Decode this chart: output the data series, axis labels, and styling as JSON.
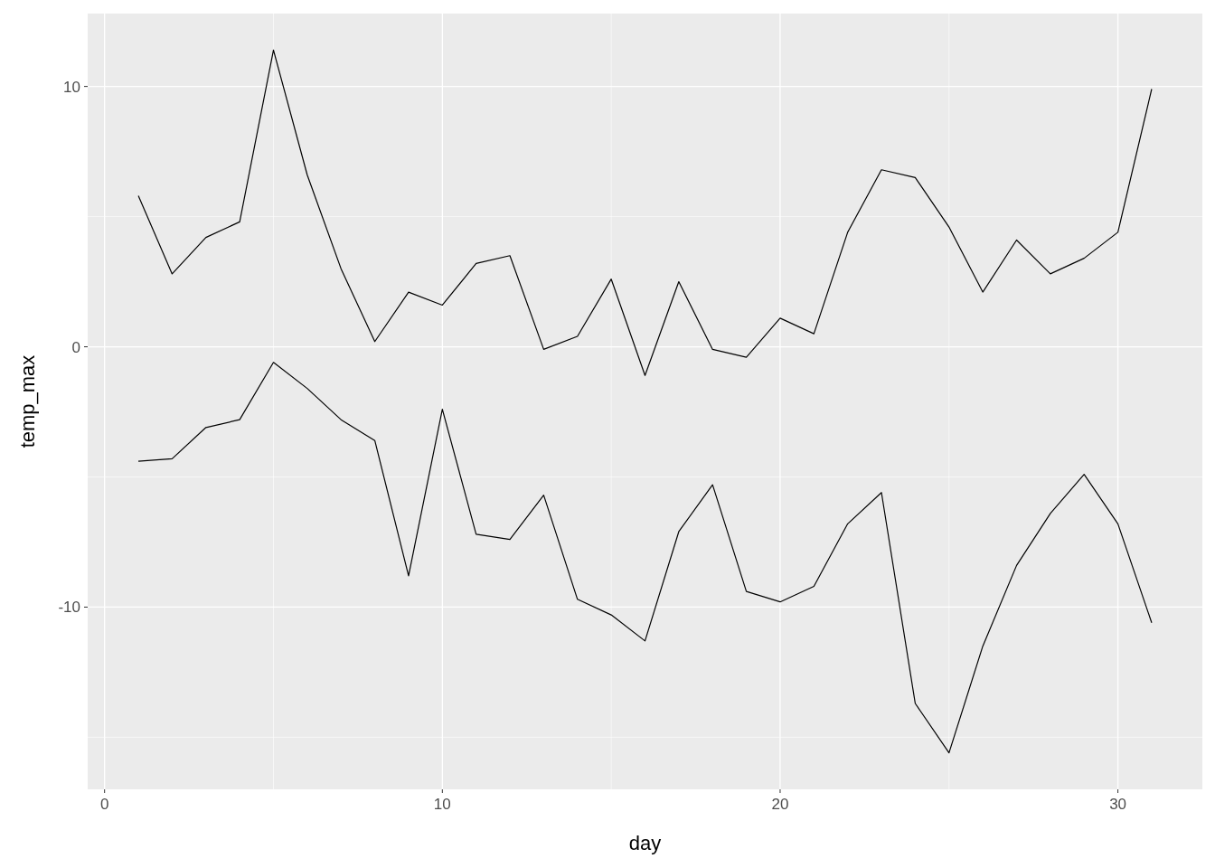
{
  "chart_data": {
    "type": "line",
    "xlabel": "day",
    "ylabel": "temp_max",
    "x": [
      1,
      2,
      3,
      4,
      5,
      6,
      7,
      8,
      9,
      10,
      11,
      12,
      13,
      14,
      15,
      16,
      17,
      18,
      19,
      20,
      21,
      22,
      23,
      24,
      25,
      26,
      27,
      28,
      29,
      30,
      31
    ],
    "series": [
      {
        "color": "#000000",
        "values": [
          5.8,
          2.8,
          4.2,
          4.8,
          11.4,
          6.6,
          3.0,
          0.2,
          2.1,
          1.6,
          3.2,
          3.5,
          -0.1,
          0.4,
          2.6,
          -1.1,
          2.5,
          -0.1,
          -0.4,
          1.1,
          0.5,
          4.4,
          6.8,
          6.5,
          4.6,
          2.1,
          4.1,
          2.8,
          3.4,
          4.4,
          9.9
        ]
      },
      {
        "color": "#000000",
        "values": [
          -4.4,
          -4.3,
          -3.1,
          -2.8,
          -0.6,
          -1.6,
          -2.8,
          -3.6,
          -8.8,
          -2.4,
          -7.2,
          -7.4,
          -5.7,
          -9.7,
          -10.3,
          -11.3,
          -7.1,
          -5.3,
          -9.4,
          -9.8,
          -9.2,
          -6.8,
          -5.6,
          -13.7,
          -15.6,
          -11.5,
          -8.4,
          -6.4,
          -4.9,
          -6.8,
          -10.6
        ]
      }
    ],
    "xlim": [
      -0.5,
      32.5
    ],
    "ylim": [
      -17,
      12.8
    ],
    "xticks": [
      0,
      10,
      20,
      30
    ],
    "yticks": [
      -10,
      0,
      10
    ],
    "grid": true,
    "marker": "none",
    "line_style": "solid"
  }
}
